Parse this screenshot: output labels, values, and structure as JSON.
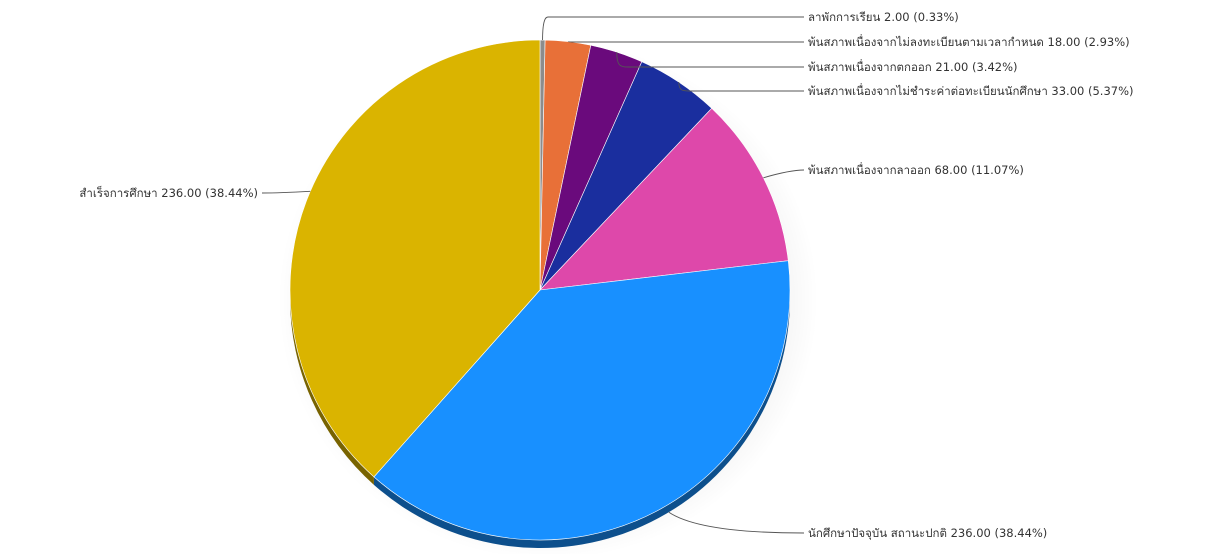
{
  "chart_data": {
    "type": "pie",
    "title": "",
    "legend": "none",
    "slices": [
      {
        "label": "ลาพักการเรียน",
        "value": 2.0,
        "percent": 0.33,
        "display": "ลาพักการเรียน 2.00 (0.33%)",
        "color": "#8C8C8C"
      },
      {
        "label": "พ้นสภาพเนื่องจากไม่ลงทะเบียนตามเวลากำหนด",
        "value": 18.0,
        "percent": 2.93,
        "display": "พ้นสภาพเนื่องจากไม่ลงทะเบียนตามเวลากำหนด 18.00 (2.93%)",
        "color": "#E87038"
      },
      {
        "label": "พ้นสภาพเนื่องจากตกออก",
        "value": 21.0,
        "percent": 3.42,
        "display": "พ้นสภาพเนื่องจากตกออก 21.00 (3.42%)",
        "color": "#6A0A7C"
      },
      {
        "label": "พ้นสภาพเนื่องจากไม่ชำระค่าต่อทะเบียนนักศึกษา",
        "value": 33.0,
        "percent": 5.37,
        "display": "พ้นสภาพเนื่องจากไม่ชำระค่าต่อทะเบียนนักศึกษา 33.00 (5.37%)",
        "color": "#1A2E9E"
      },
      {
        "label": "พ้นสภาพเนื่องจากลาออก",
        "value": 68.0,
        "percent": 11.07,
        "display": "พ้นสภาพเนื่องจากลาออก 68.00 (11.07%)",
        "color": "#DE48AA"
      },
      {
        "label": "นักศึกษาปัจจุบัน สถานะปกติ",
        "value": 236.0,
        "percent": 38.44,
        "display": "นักศึกษาปัจจุบัน สถานะปกติ 236.00 (38.44%)",
        "color": "#1890FF"
      },
      {
        "label": "สำเร็จการศึกษา",
        "value": 236.0,
        "percent": 38.44,
        "display": "สำเร็จการศึกษา 236.00 (38.44%)",
        "color": "#DAB400"
      }
    ]
  }
}
